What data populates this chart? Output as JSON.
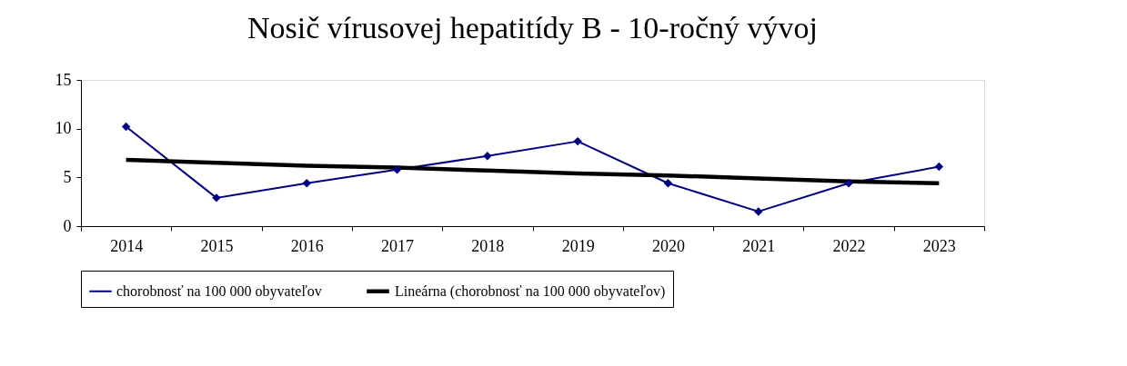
{
  "chart_data": {
    "type": "line",
    "title": "Nosič vírusovej hepatitídy B - 10-ročný vývoj",
    "categories": [
      "2014",
      "2015",
      "2016",
      "2017",
      "2018",
      "2019",
      "2020",
      "2021",
      "2022",
      "2023"
    ],
    "series": [
      {
        "name": "chorobnosť na 100 000 obyvateľov",
        "color": "#000080",
        "marker": "diamond",
        "values": [
          10.2,
          2.9,
          4.4,
          5.8,
          7.2,
          8.7,
          4.4,
          1.5,
          4.4,
          6.1
        ]
      },
      {
        "name": "Lineárna (chorobnosť na 100 000 obyvateľov)",
        "color": "#000000",
        "marker": "none",
        "values": [
          6.8,
          6.5,
          6.2,
          6.0,
          5.7,
          5.4,
          5.2,
          4.9,
          4.6,
          4.4
        ]
      }
    ],
    "ylim": [
      0,
      15
    ],
    "yticks": [
      0,
      5,
      10,
      15
    ],
    "grid": false,
    "legend": "bottom"
  }
}
